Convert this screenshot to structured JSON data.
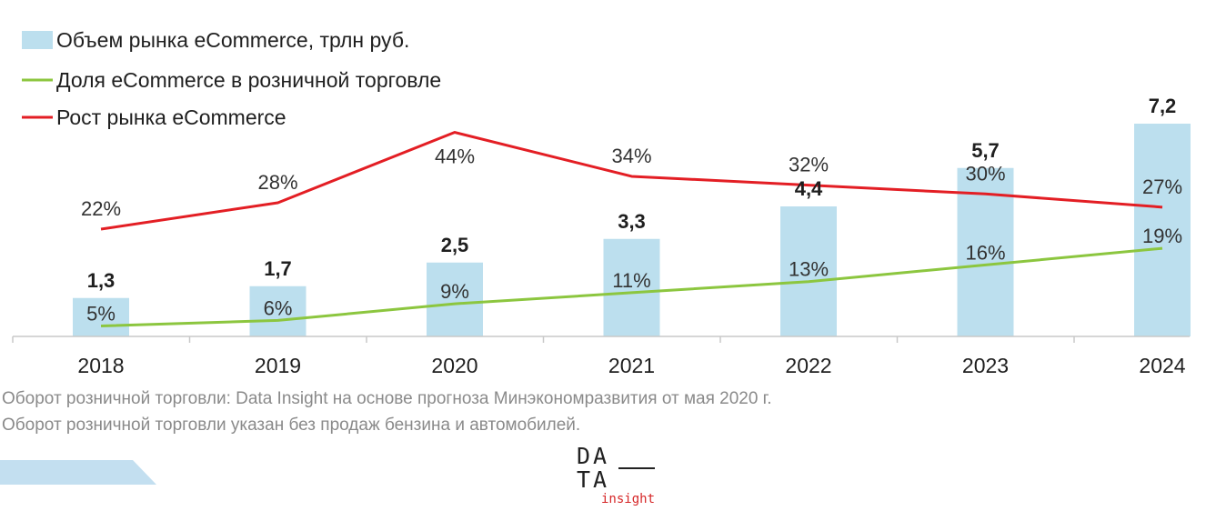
{
  "chart_data": {
    "type": "bar",
    "categories": [
      "2018",
      "2019",
      "2020",
      "2021",
      "2022",
      "2023",
      "2024"
    ],
    "series": [
      {
        "name": "Объем рынка eCommerce, трлн руб.",
        "kind": "bar",
        "color": "#bcdfee",
        "values": [
          1.3,
          1.7,
          2.5,
          3.3,
          4.4,
          5.7,
          7.2
        ],
        "labels": [
          "1,3",
          "1,7",
          "2,5",
          "3,3",
          "4,4",
          "5,7",
          "7,2"
        ]
      },
      {
        "name": "Доля eCommerce в розничной торговле",
        "kind": "line",
        "color": "#8cc63f",
        "values": [
          5,
          6,
          9,
          11,
          13,
          16,
          19
        ],
        "labels": [
          "5%",
          "6%",
          "9%",
          "11%",
          "13%",
          "16%",
          "19%"
        ]
      },
      {
        "name": "Рост рынка eCommerce",
        "kind": "line",
        "color": "#e31e24",
        "values": [
          22,
          28,
          44,
          34,
          32,
          30,
          27
        ],
        "labels": [
          "22%",
          "28%",
          "44%",
          "34%",
          "32%",
          "30%",
          "27%"
        ]
      }
    ],
    "legend_position": "top-left",
    "grid": false
  },
  "notes": [
    "Оборот розничной торговли: Data Insight на основе прогноза Минэкономразвития от мая 2020 г.",
    "Оборот розничной торговли указан без продаж бензина и автомобилей."
  ],
  "logo": {
    "row1": "DA",
    "row2": "TA",
    "sub": "insight"
  }
}
